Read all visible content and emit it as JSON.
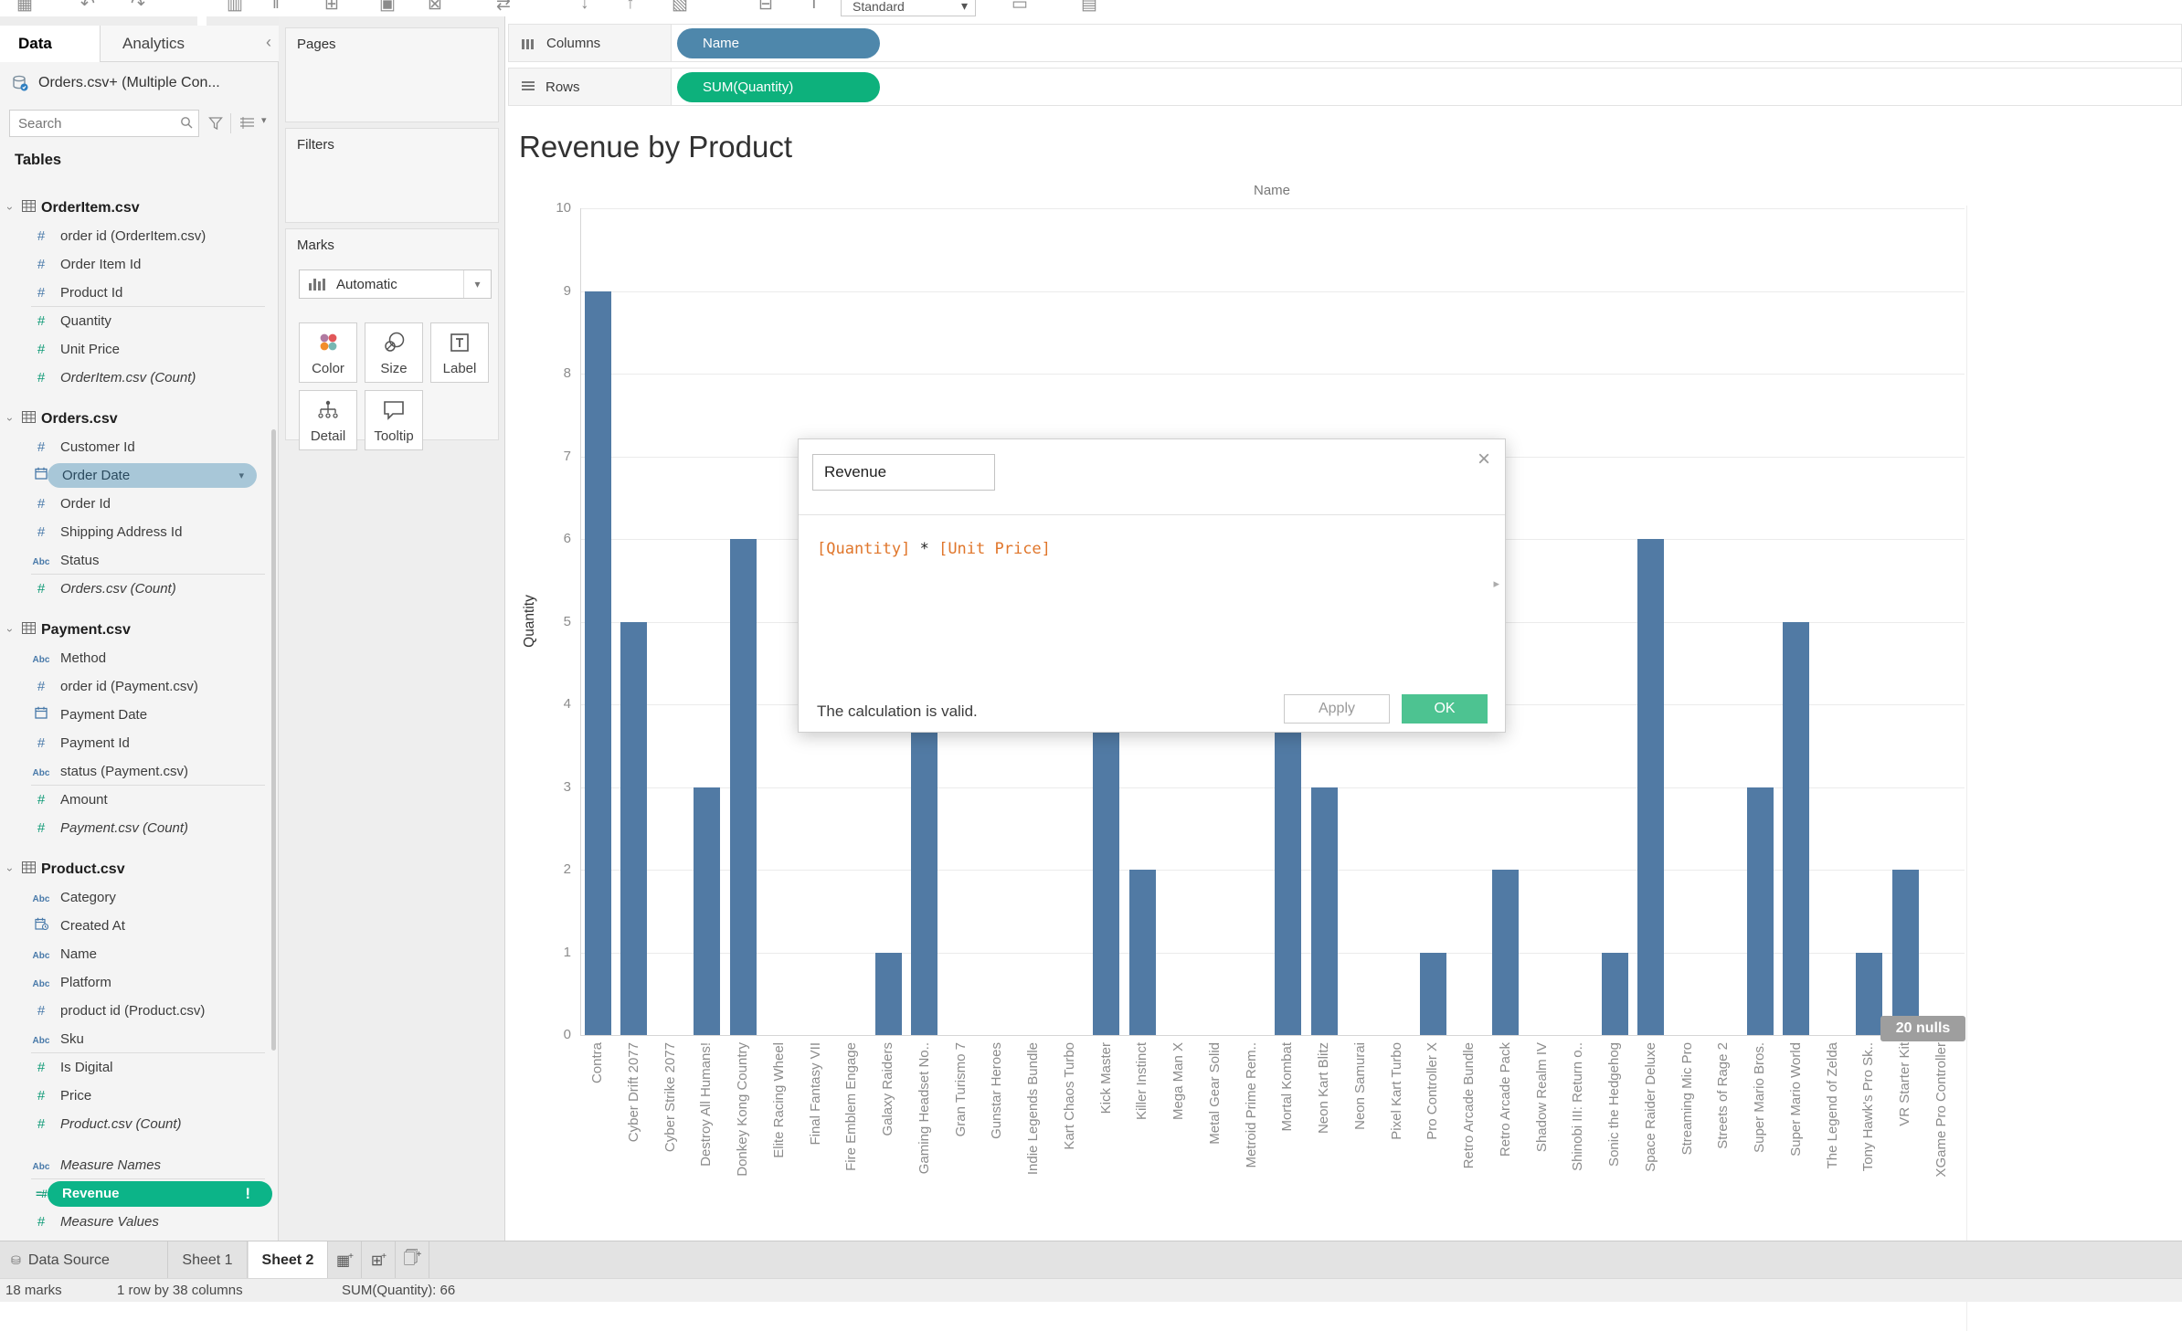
{
  "toolbar": {
    "standard_label": "Standard",
    "icons_before": [
      "tableau-logo",
      "undo",
      "redo",
      "new-data-source",
      "pause-auto-updates",
      "new-worksheet",
      "duplicate-sheet",
      "clear-sheet",
      "swap-rows-and-columns",
      "sort-ascending",
      "sort-descending",
      "highlight",
      "group-members",
      "show-mark-labels"
    ],
    "icons_after": [
      "fit-selector",
      "show-hide-cards"
    ]
  },
  "data_pane": {
    "tab_data": "Data",
    "tab_analytics": "Analytics",
    "collapse_glyph": "‹",
    "datasource": "Orders.csv+ (Multiple Con...",
    "search_placeholder": "Search",
    "tables_header": "Tables",
    "sections": [
      {
        "name": "OrderItem.csv",
        "fields": [
          {
            "label": "order id (OrderItem.csv)",
            "icon": "number-dimension"
          },
          {
            "label": "Order Item Id",
            "icon": "number-dimension"
          },
          {
            "label": "Product Id",
            "icon": "number-dimension",
            "divider_after": true
          },
          {
            "label": "Quantity",
            "icon": "number-measure"
          },
          {
            "label": "Unit Price",
            "icon": "number-measure"
          },
          {
            "label": "OrderItem.csv (Count)",
            "icon": "number-measure",
            "italic": true
          }
        ]
      },
      {
        "name": "Orders.csv",
        "fields": [
          {
            "label": "Customer Id",
            "icon": "number-dimension"
          },
          {
            "label": "Order Date",
            "icon": "date",
            "pill": "selected"
          },
          {
            "label": "Order Id",
            "icon": "number-dimension"
          },
          {
            "label": "Shipping Address Id",
            "icon": "number-dimension"
          },
          {
            "label": "Status",
            "icon": "abc",
            "divider_after": true
          },
          {
            "label": "Orders.csv (Count)",
            "icon": "number-measure",
            "italic": true
          }
        ]
      },
      {
        "name": "Payment.csv",
        "fields": [
          {
            "label": "Method",
            "icon": "abc"
          },
          {
            "label": "order id (Payment.csv)",
            "icon": "number-dimension"
          },
          {
            "label": "Payment Date",
            "icon": "date"
          },
          {
            "label": "Payment Id",
            "icon": "number-dimension"
          },
          {
            "label": "status (Payment.csv)",
            "icon": "abc",
            "divider_after": true
          },
          {
            "label": "Amount",
            "icon": "number-measure"
          },
          {
            "label": "Payment.csv (Count)",
            "icon": "number-measure",
            "italic": true
          }
        ]
      },
      {
        "name": "Product.csv",
        "fields": [
          {
            "label": "Category",
            "icon": "abc"
          },
          {
            "label": "Created At",
            "icon": "datetime"
          },
          {
            "label": "Name",
            "icon": "abc"
          },
          {
            "label": "Platform",
            "icon": "abc"
          },
          {
            "label": "product id (Product.csv)",
            "icon": "number-dimension"
          },
          {
            "label": "Sku",
            "icon": "abc",
            "divider_after": true
          },
          {
            "label": "Is Digital",
            "icon": "number-measure"
          },
          {
            "label": "Price",
            "icon": "number-measure"
          },
          {
            "label": "Product.csv (Count)",
            "icon": "number-measure",
            "italic": true
          }
        ]
      },
      {
        "name": "",
        "fields": [
          {
            "label": "Measure Names",
            "icon": "abc",
            "italic": true,
            "divider_after": true
          },
          {
            "label": "Revenue",
            "icon": "calculation",
            "pill": "error",
            "error_glyph": "!"
          },
          {
            "label": "Measure Values",
            "icon": "number-measure",
            "italic": true
          }
        ]
      }
    ]
  },
  "cards": {
    "pages": "Pages",
    "filters": "Filters",
    "marks": "Marks",
    "mark_type": "Automatic",
    "buttons": [
      {
        "label": "Color",
        "icon": "color-icon"
      },
      {
        "label": "Size",
        "icon": "size-icon"
      },
      {
        "label": "Label",
        "icon": "label-icon"
      },
      {
        "label": "Detail",
        "icon": "detail-icon"
      },
      {
        "label": "Tooltip",
        "icon": "tooltip-icon"
      }
    ]
  },
  "shelves": {
    "columns_label": "Columns",
    "rows_label": "Rows",
    "columns_pill": "Name",
    "rows_pill": "SUM(Quantity)"
  },
  "chart_data": {
    "type": "bar",
    "title": "Revenue by Product",
    "xlabel": "Name",
    "ylabel": "Quantity",
    "ylim": [
      0,
      10
    ],
    "grid": true,
    "null_indicator": "20 nulls",
    "categories": [
      "Contra",
      "Cyber Drift 2077",
      "Cyber Strike 2077",
      "Destroy All Humans!",
      "Donkey Kong Country",
      "Elite Racing Wheel",
      "Final Fantasy VII",
      "Fire Emblem Engage",
      "Galaxy Raiders",
      "Gaming Headset No..",
      "Gran Turismo 7",
      "Gunstar Heroes",
      "Indie Legends Bundle",
      "Kart Chaos Turbo",
      "Kick Master",
      "Killer Instinct",
      "Mega Man X",
      "Metal Gear Solid",
      "Metroid Prime Rem..",
      "Mortal Kombat",
      "Neon Kart Blitz",
      "Neon Samurai",
      "Pixel Kart Turbo",
      "Pro Controller X",
      "Retro Arcade Bundle",
      "Retro Arcade Pack",
      "Shadow Realm IV",
      "Shinobi III: Return o..",
      "Sonic the Hedgehog",
      "Space Raider Deluxe",
      "Streaming Mic Pro",
      "Streets of Rage 2",
      "Super Mario Bros.",
      "Super Mario World",
      "The Legend of Zelda",
      "Tony Hawk's Pro Sk..",
      "VR Starter Kit",
      "XGame Pro Controller"
    ],
    "values": [
      9,
      5,
      null,
      3,
      6,
      null,
      null,
      null,
      1,
      6,
      null,
      null,
      null,
      null,
      5,
      2,
      null,
      null,
      null,
      5,
      3,
      null,
      null,
      1,
      null,
      2,
      null,
      null,
      1,
      6,
      null,
      null,
      3,
      5,
      null,
      1,
      2,
      null
    ]
  },
  "dialog": {
    "name_value": "Revenue",
    "formula_tokens": [
      {
        "type": "field",
        "text": "[Quantity]"
      },
      {
        "type": "operator",
        "text": " * "
      },
      {
        "type": "field",
        "text": "[Unit Price]"
      }
    ],
    "validation_message": "The calculation is valid.",
    "apply_label": "Apply",
    "ok_label": "OK",
    "close_glyph": "×",
    "expand_glyph": "▸"
  },
  "tabs": {
    "data_source_label": "Data Source",
    "sheets": [
      "Sheet 1",
      "Sheet 2"
    ],
    "active_sheet": "Sheet 2",
    "new_buttons": [
      "new-worksheet",
      "new-dashboard",
      "new-story"
    ]
  },
  "status_bar": {
    "marks": "18 marks",
    "dimensions": "1 row by 38 columns",
    "aggregate": "SUM(Quantity): 66"
  },
  "colors": {
    "bar": "#517aa4",
    "dimension_pill": "#4e87ab",
    "measure_pill": "#0db17c",
    "selected_field_pill": "#a8c7d8",
    "calculated_field_pill": "#0cb488",
    "ok_button": "#4dc391",
    "formula_field": "#e0762b",
    "null_badge": "#9e9e9e",
    "dimension_icon": "#4879a9",
    "measure_icon": "#0e9a76"
  }
}
